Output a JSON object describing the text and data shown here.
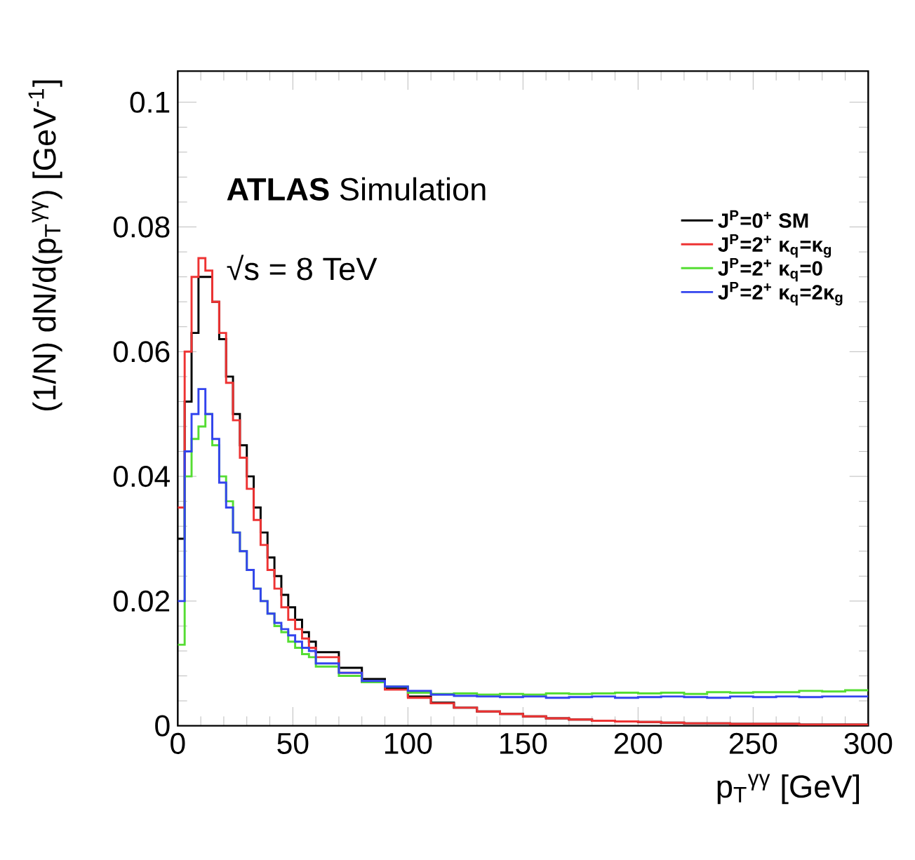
{
  "chart_data": {
    "type": "histogram",
    "xlabel": "p$_{T}$$^{γγ}$ [GeV]",
    "ylabel": "(1/N) dN/d(p$_{T}$$^{γγ}$) [GeV$^{-1}$]",
    "annotations": [
      "**ATLAS** Simulation",
      "√s = 8 TeV"
    ],
    "bins": [
      0,
      3,
      6,
      9,
      12,
      15,
      18,
      21,
      24,
      27,
      30,
      33,
      36,
      39,
      42,
      45,
      48,
      51,
      54,
      57,
      60,
      70,
      80,
      90,
      100,
      110,
      120,
      130,
      140,
      150,
      160,
      170,
      180,
      190,
      200,
      210,
      220,
      230,
      240,
      250,
      260,
      270,
      280,
      290,
      300
    ],
    "series": [
      {
        "name": "J$^{P}$=0$^{+}$ SM",
        "color": "#000000",
        "values": [
          0.03,
          0.052,
          0.063,
          0.072,
          0.072,
          0.068,
          0.062,
          0.056,
          0.05,
          0.045,
          0.04,
          0.035,
          0.031,
          0.027,
          0.024,
          0.021,
          0.019,
          0.017,
          0.015,
          0.0135,
          0.0118,
          0.0093,
          0.0075,
          0.006,
          0.0047,
          0.0037,
          0.0029,
          0.0023,
          0.0019,
          0.0015,
          0.0012,
          0.001,
          0.0008,
          0.0007,
          0.0006,
          0.0005,
          0.0004,
          0.0004,
          0.0003,
          0.0003,
          0.0003,
          0.0002,
          0.0002,
          0.0002
        ]
      },
      {
        "name": "J$^{P}$=2$^{+}$ κ$_{q}$=κ$_{g}$",
        "color": "#ee3333",
        "values": [
          0.035,
          0.06,
          0.072,
          0.075,
          0.073,
          0.068,
          0.063,
          0.055,
          0.049,
          0.043,
          0.038,
          0.033,
          0.029,
          0.025,
          0.022,
          0.019,
          0.017,
          0.0155,
          0.014,
          0.0125,
          0.011,
          0.0085,
          0.007,
          0.0058,
          0.0045,
          0.0036,
          0.0029,
          0.0023,
          0.0019,
          0.0015,
          0.0012,
          0.001,
          0.0008,
          0.0007,
          0.0006,
          0.0005,
          0.0004,
          0.0004,
          0.0003,
          0.0003,
          0.0003,
          0.0002,
          0.0002,
          0.0002
        ]
      },
      {
        "name": "J$^{P}$=2$^{+}$ κ$_{q}$=0",
        "color": "#55dd33",
        "values": [
          0.013,
          0.04,
          0.046,
          0.048,
          0.05,
          0.045,
          0.04,
          0.036,
          0.031,
          0.028,
          0.025,
          0.022,
          0.02,
          0.018,
          0.016,
          0.015,
          0.0135,
          0.0125,
          0.0115,
          0.011,
          0.0095,
          0.008,
          0.007,
          0.0063,
          0.0053,
          0.0051,
          0.0052,
          0.005,
          0.0051,
          0.005,
          0.0052,
          0.0051,
          0.0052,
          0.0053,
          0.0052,
          0.0053,
          0.0051,
          0.0054,
          0.0053,
          0.0054,
          0.0054,
          0.0056,
          0.0055,
          0.0057
        ]
      },
      {
        "name": "J$^{P}$=2$^{+}$ κ$_{q}$=2κ$_{g}$",
        "color": "#3344ee",
        "values": [
          0.02,
          0.044,
          0.05,
          0.054,
          0.05,
          0.046,
          0.039,
          0.035,
          0.031,
          0.028,
          0.025,
          0.022,
          0.02,
          0.018,
          0.0165,
          0.0155,
          0.0145,
          0.0135,
          0.0125,
          0.012,
          0.01,
          0.0085,
          0.0072,
          0.0063,
          0.0056,
          0.005,
          0.0048,
          0.0047,
          0.0046,
          0.0047,
          0.0045,
          0.0046,
          0.0047,
          0.0045,
          0.0046,
          0.0047,
          0.0046,
          0.0045,
          0.0047,
          0.0046,
          0.0047,
          0.0046,
          0.0047,
          0.0047
        ]
      }
    ],
    "xlim": [
      0,
      300
    ],
    "ylim": [
      0,
      0.105
    ],
    "xticks": [
      0,
      50,
      100,
      150,
      200,
      250,
      300
    ],
    "yticks": [
      0,
      0.02,
      0.04,
      0.06,
      0.08,
      0.1
    ],
    "legend": "top right",
    "grid": false
  }
}
